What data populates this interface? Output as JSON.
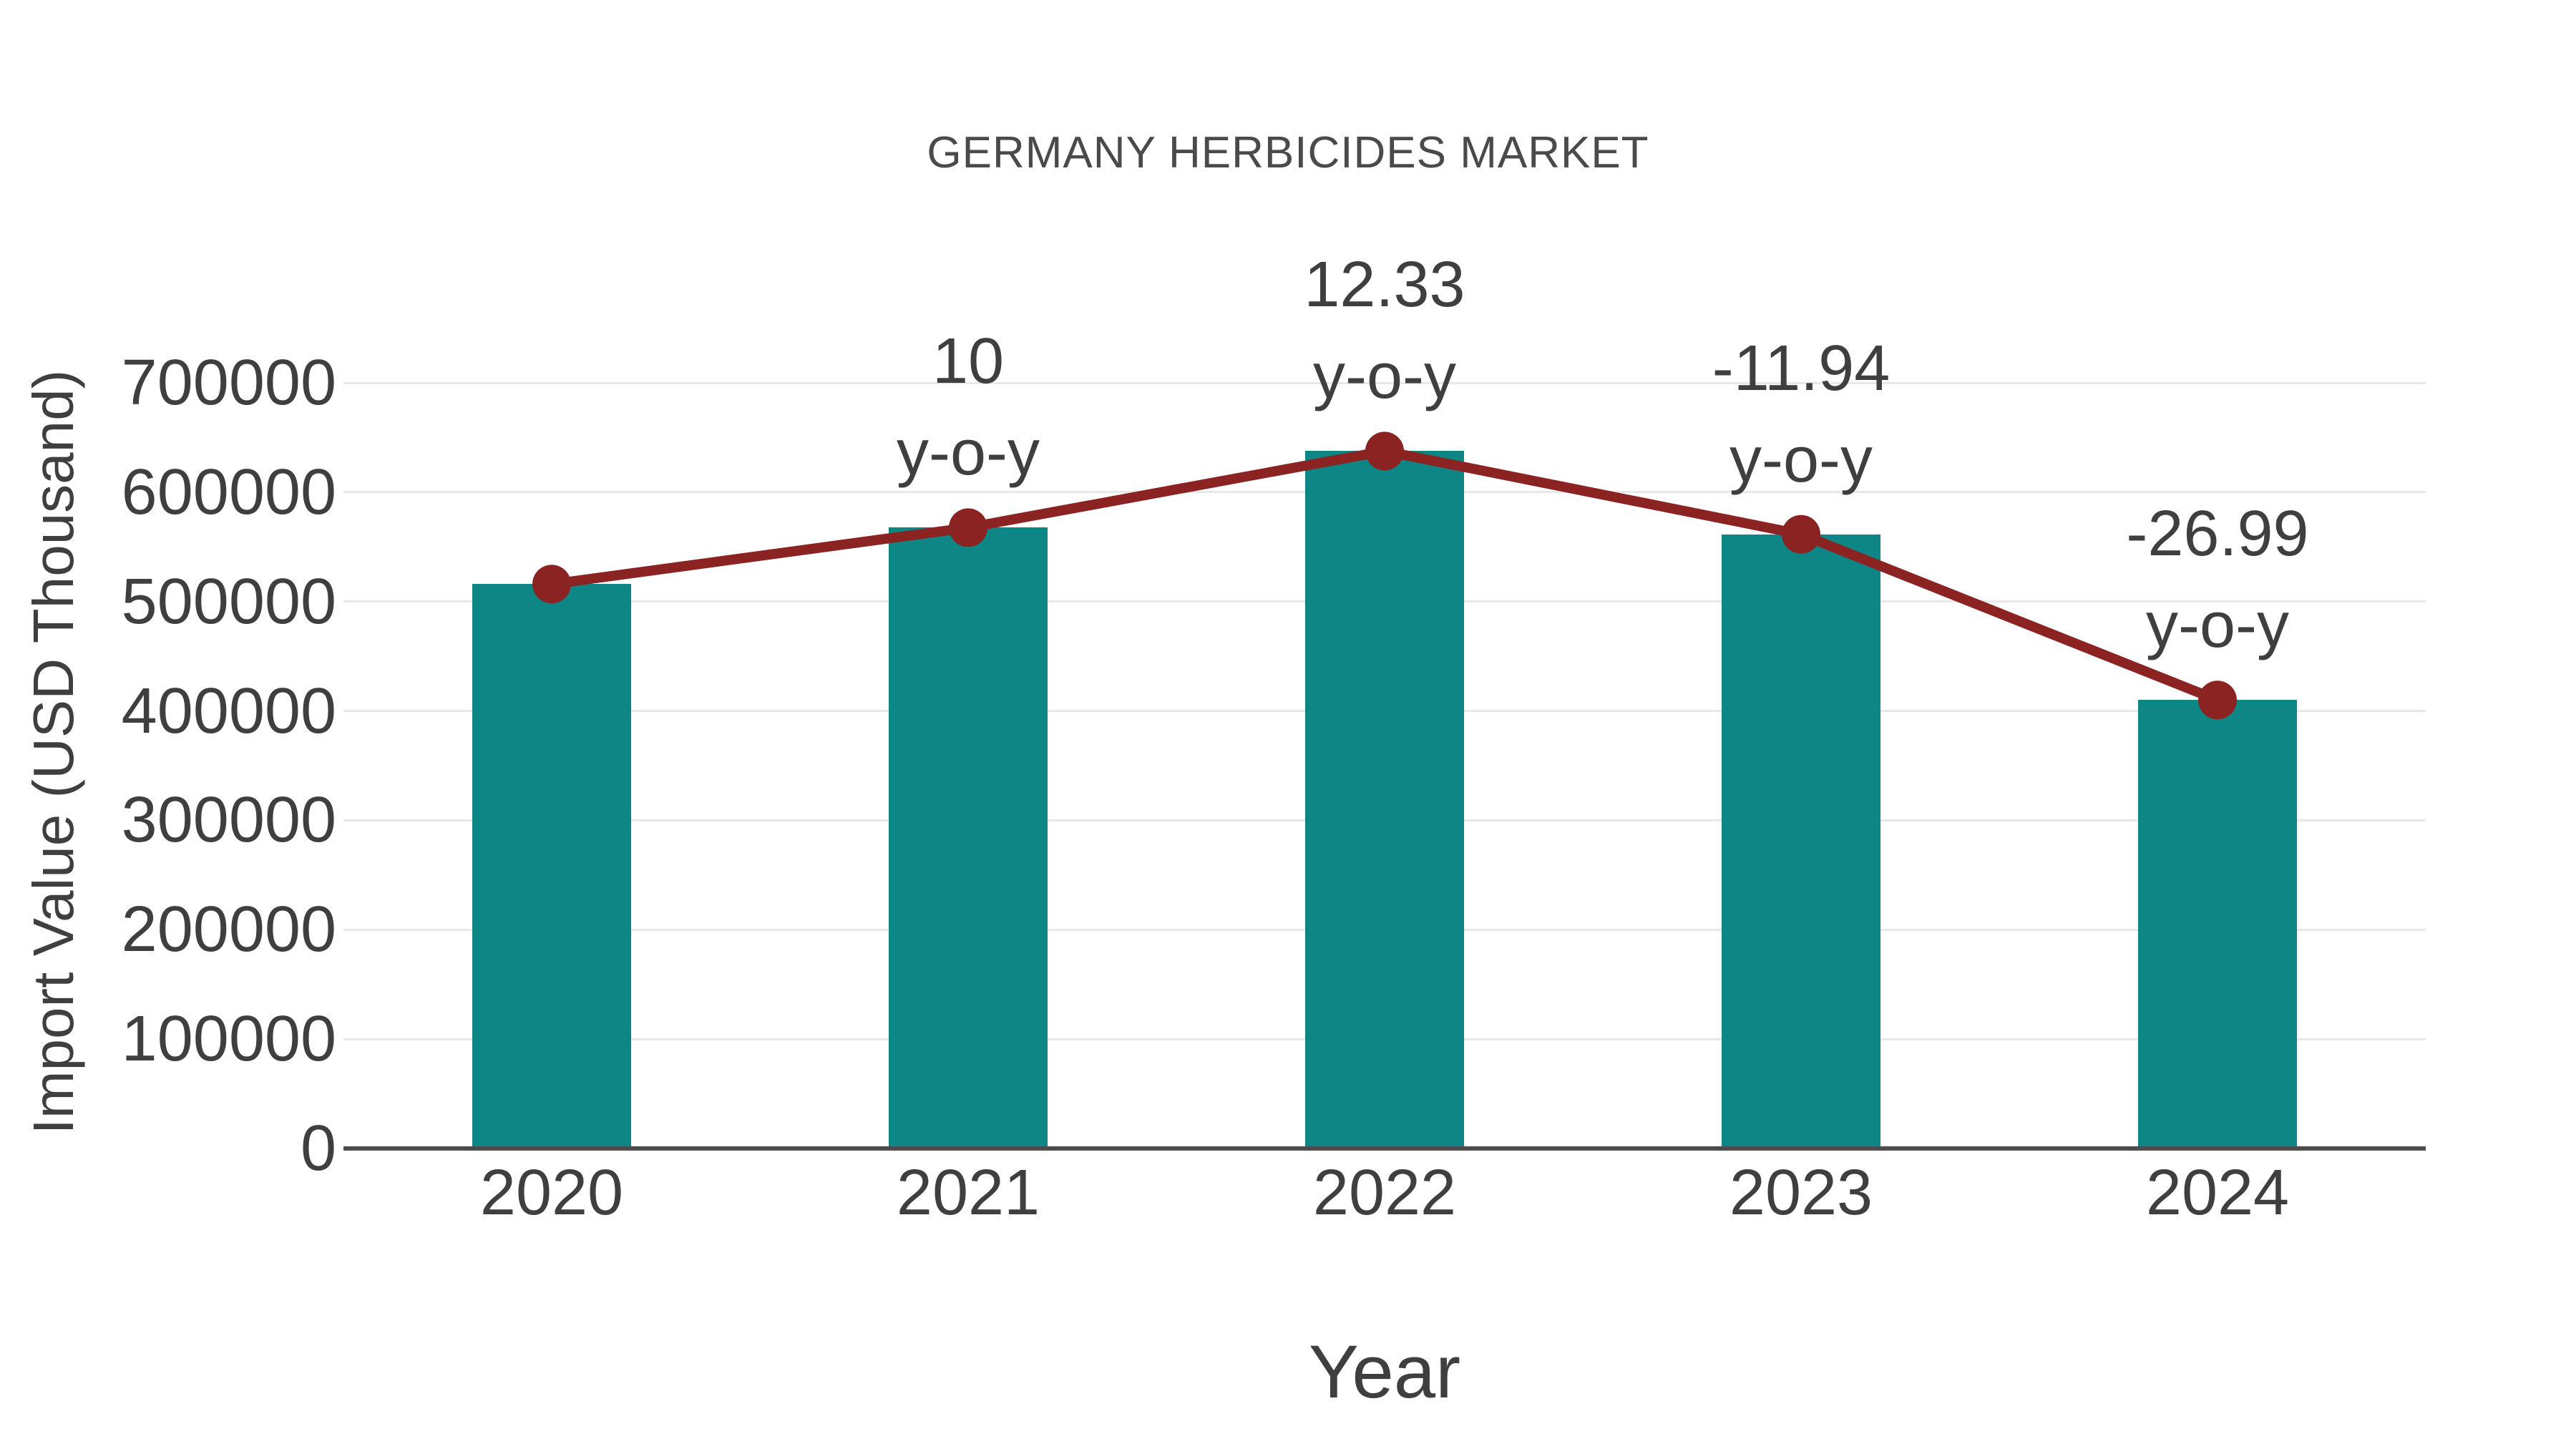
{
  "chart_data": {
    "type": "bar",
    "title": "GERMANY HERBICIDES MARKET",
    "xlabel": "Year",
    "ylabel": "Import Value (USD Thousand)",
    "categories": [
      "2020",
      "2021",
      "2022",
      "2023",
      "2024"
    ],
    "series": [
      {
        "name": "Import Value",
        "type": "bar",
        "values": [
          516000,
          567600,
          637600,
          561500,
          410000
        ]
      },
      {
        "name": "y-o-y trend",
        "type": "line",
        "values": [
          516000,
          567600,
          637600,
          561500,
          410000
        ]
      }
    ],
    "point_labels": [
      null,
      "10",
      "12.33",
      "-11.94",
      "-26.99"
    ],
    "point_label_suffix": "y-o-y",
    "yticks": [
      0,
      100000,
      200000,
      300000,
      400000,
      500000,
      600000,
      700000
    ],
    "ylim": [
      0,
      700000
    ],
    "grid": true,
    "legend_position": "none"
  },
  "colors": {
    "bar": "#0E8686",
    "line": "#8B2323",
    "marker": "#8B2323",
    "title_text": "#4A4A4A",
    "tick_text": "#3F3F3F",
    "gridline": "#E8E8E8",
    "axis_line": "#4D4D4D",
    "background": "#FFFFFF"
  }
}
